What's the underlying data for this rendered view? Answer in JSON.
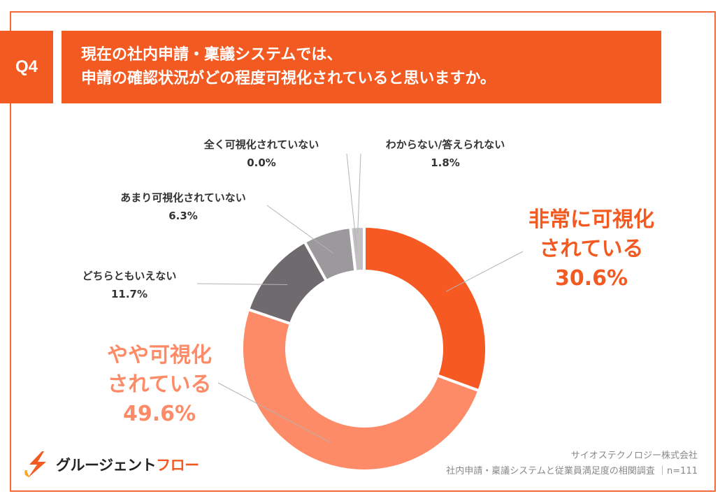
{
  "question": {
    "badge": "Q4",
    "line1": "現在の社内申請・稟議システムでは、",
    "line2": "申請の確認状況がどの程度可視化されていると思いますか。"
  },
  "chart_data": {
    "type": "pie",
    "donut": true,
    "start": "12 o'clock, clockwise",
    "slices": [
      {
        "name": "非常に可視化されている",
        "value": 30.6,
        "label_lines": [
          "非常に可視化",
          "されている"
        ],
        "pct": "30.6%",
        "color": "#f65a22"
      },
      {
        "name": "やや可視化されている",
        "value": 49.6,
        "label_lines": [
          "やや可視化",
          "されている"
        ],
        "pct": "49.6%",
        "color": "#fd8b67"
      },
      {
        "name": "どちらともいえない",
        "value": 11.7,
        "label_lines": [
          "どちらともいえない"
        ],
        "pct": "11.7%",
        "color": "#6e6a6e"
      },
      {
        "name": "あまり可視化されていない",
        "value": 6.3,
        "label_lines": [
          "あまり可視化されていない"
        ],
        "pct": "6.3%",
        "color": "#9c999c"
      },
      {
        "name": "全く可視化されていない",
        "value": 0.0,
        "label_lines": [
          "全く可視化されていない"
        ],
        "pct": "0.0%",
        "color": "#c7c5c7"
      },
      {
        "name": "わからない/答えられない",
        "value": 1.8,
        "label_lines": [
          "わからない/答えられない"
        ],
        "pct": "1.8%",
        "color": "#c2c0c2"
      }
    ]
  },
  "logo": {
    "part1": "グルージェント",
    "part2": "フロー"
  },
  "source": {
    "company": "サイオステクノロジー株式会社",
    "survey": "社内申請・稟議システムと従業員満足度の相関調査",
    "n": "n=111"
  }
}
